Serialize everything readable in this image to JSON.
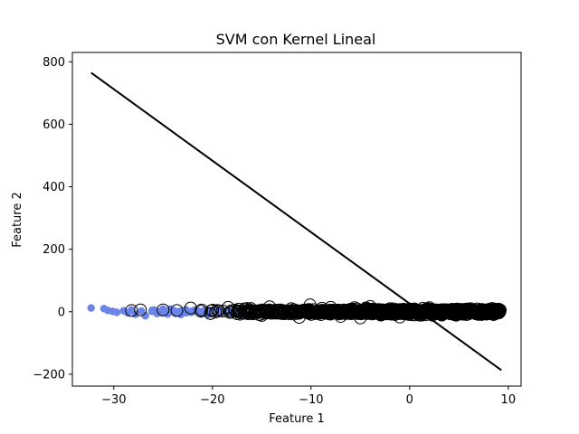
{
  "chart_data": {
    "type": "scatter",
    "title": "SVM con Kernel Lineal",
    "xlabel": "Feature 1",
    "ylabel": "Feature 2",
    "xlim": [
      -34.2,
      11.3
    ],
    "ylim": [
      -238,
      830
    ],
    "x_ticks": [
      -30,
      -20,
      -10,
      0,
      10
    ],
    "x_tick_labels": [
      "−30",
      "−20",
      "−10",
      "0",
      "10"
    ],
    "y_ticks": [
      -200,
      0,
      200,
      400,
      600,
      800
    ],
    "y_tick_labels": [
      "−200",
      "0",
      "200",
      "400",
      "600",
      "800"
    ],
    "grid": false,
    "legend": "none",
    "colors": {
      "points": "#6a84e8",
      "support_vectors": "#000000",
      "decision_line": "#000000"
    },
    "series": [
      {
        "kind": "points",
        "x_range": [
          -32.3,
          9.3
        ],
        "y_center": 0,
        "y_spread": 12,
        "samples": [
          [
            -32.3,
            12
          ],
          [
            -31.0,
            10
          ],
          [
            -30.6,
            4
          ],
          [
            -30.1,
            1
          ],
          [
            -29.7,
            -2
          ],
          [
            -29.0,
            3
          ],
          [
            -28.6,
            -4
          ],
          [
            -28.2,
            6
          ],
          [
            -27.8,
            -8
          ],
          [
            -27.2,
            2
          ],
          [
            -26.8,
            -13
          ],
          [
            -26.1,
            5
          ],
          [
            -25.6,
            -6
          ],
          [
            -25.0,
            8
          ],
          [
            -24.4,
            -3
          ],
          [
            -23.9,
            4
          ],
          [
            -23.2,
            -9
          ],
          [
            -22.7,
            7
          ],
          [
            -22.1,
            -2
          ],
          [
            -21.6,
            3
          ]
        ]
      },
      {
        "kind": "support_vectors",
        "x_range": [
          -28.3,
          9.2
        ],
        "y_range": [
          -25,
          25
        ],
        "samples": [
          [
            -28.2,
            4
          ],
          [
            -27.3,
            6
          ],
          [
            -25.0,
            6
          ],
          [
            -23.6,
            4
          ],
          [
            -22.2,
            12
          ],
          [
            -21.2,
            2
          ],
          [
            -20.2,
            -6
          ],
          [
            -19.5,
            4
          ],
          [
            -18.4,
            14
          ],
          [
            -17.2,
            -8
          ],
          [
            -16.2,
            6
          ],
          [
            -15.0,
            -12
          ],
          [
            -14.2,
            16
          ],
          [
            -13.1,
            -4
          ],
          [
            -12.0,
            10
          ],
          [
            -11.2,
            -18
          ],
          [
            -10.1,
            22
          ],
          [
            -9.0,
            -9
          ],
          [
            -8.0,
            14
          ],
          [
            -7.0,
            -15
          ],
          [
            -6.0,
            8
          ],
          [
            -5.0,
            -20
          ],
          [
            -4.0,
            17
          ],
          [
            -3.0,
            -5
          ],
          [
            -2.0,
            10
          ],
          [
            -1.0,
            -17
          ],
          [
            0.0,
            9
          ],
          [
            1.0,
            -11
          ],
          [
            2.0,
            13
          ],
          [
            3.0,
            -7
          ],
          [
            4.0,
            6
          ],
          [
            5.0,
            -4
          ],
          [
            6.0,
            4
          ],
          [
            7.0,
            -3
          ],
          [
            8.0,
            2
          ],
          [
            9.0,
            0
          ]
        ]
      }
    ],
    "decision_line": {
      "x": [
        -32.3,
        9.3
      ],
      "y": [
        765,
        -187
      ]
    }
  }
}
